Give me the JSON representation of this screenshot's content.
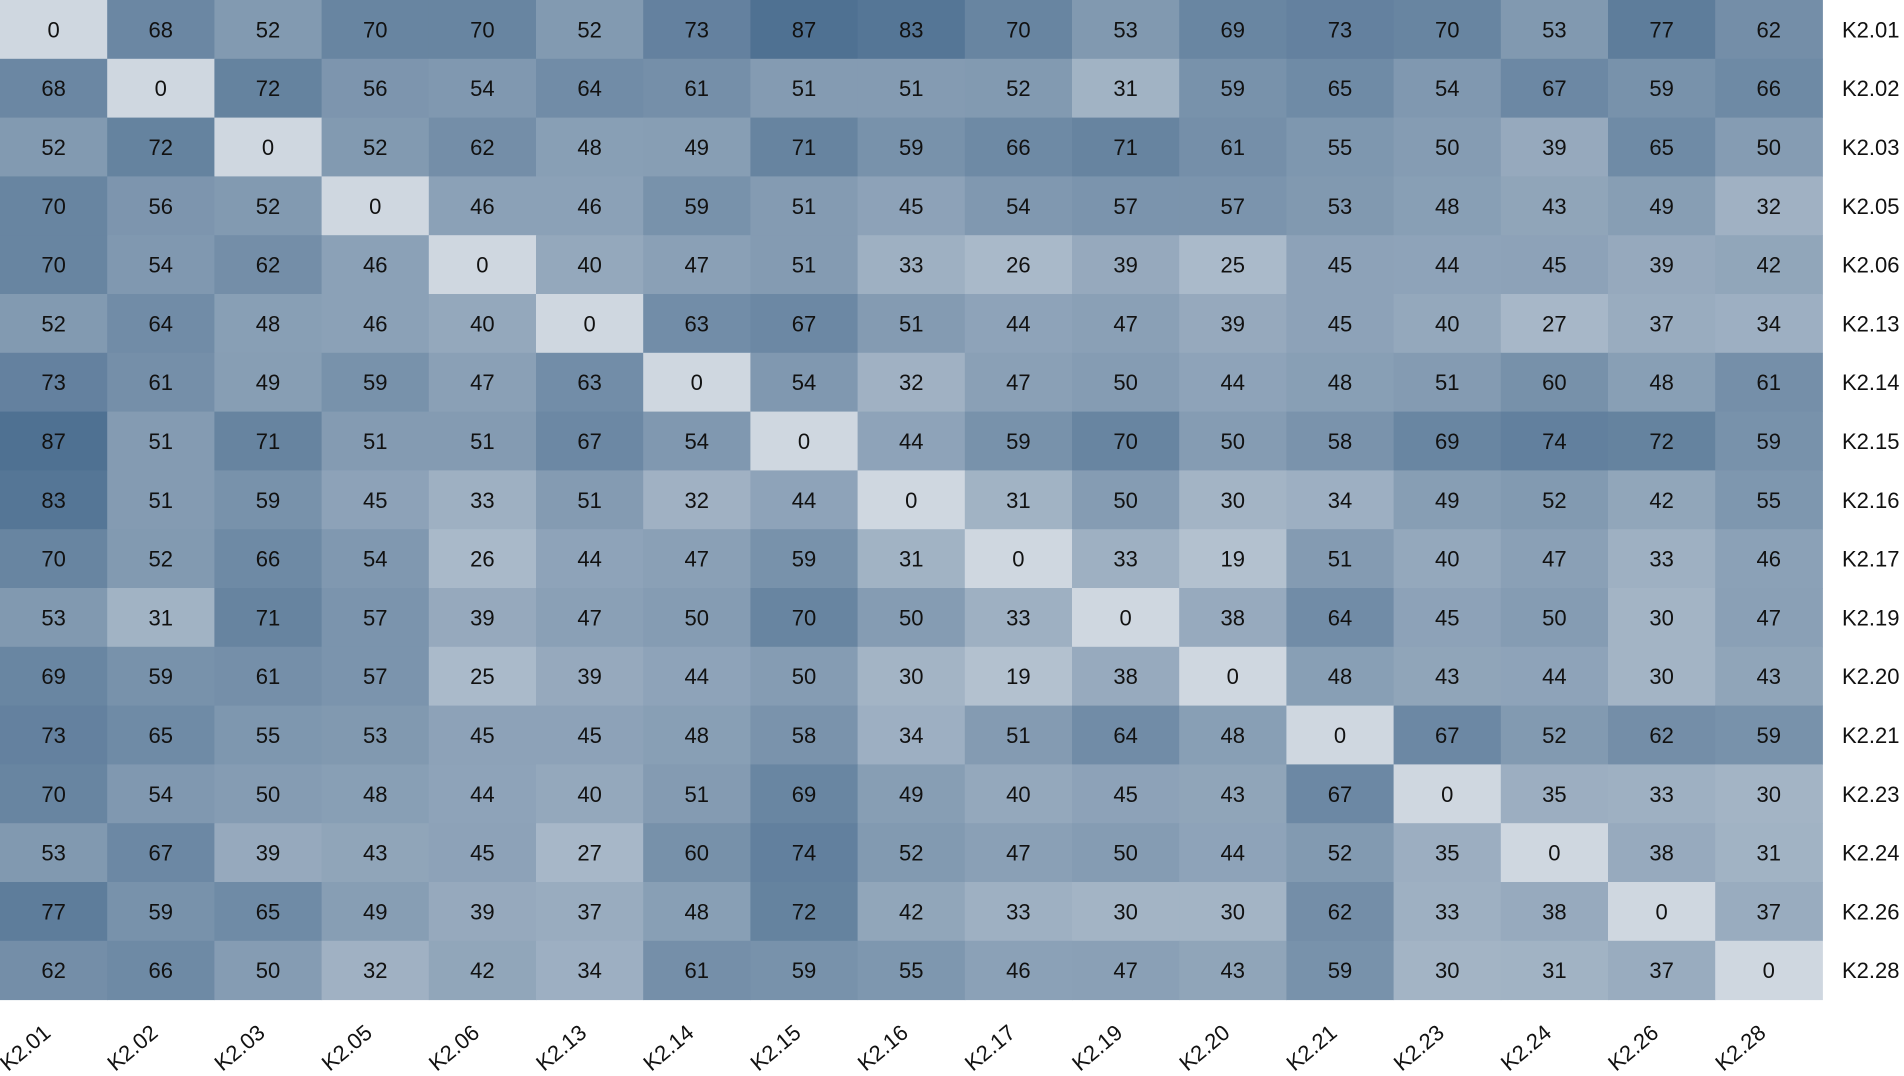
{
  "chart_data": {
    "type": "heatmap",
    "colors": {
      "low": "#cfd7e0",
      "high": "#4f7192",
      "text": "#111111",
      "background": "#ffffff"
    },
    "labels": [
      "K2.01",
      "K2.02",
      "K2.03",
      "K2.05",
      "K2.06",
      "K2.13",
      "K2.14",
      "K2.15",
      "K2.16",
      "K2.17",
      "K2.19",
      "K2.20",
      "K2.21",
      "K2.23",
      "K2.24",
      "K2.26",
      "K2.28"
    ],
    "value_range": [
      0,
      87
    ],
    "values": [
      [
        0,
        68,
        52,
        70,
        70,
        52,
        73,
        87,
        83,
        70,
        53,
        69,
        73,
        70,
        53,
        77,
        62
      ],
      [
        68,
        0,
        72,
        56,
        54,
        64,
        61,
        51,
        51,
        52,
        31,
        59,
        65,
        54,
        67,
        59,
        66
      ],
      [
        52,
        72,
        0,
        52,
        62,
        48,
        49,
        71,
        59,
        66,
        71,
        61,
        55,
        50,
        39,
        65,
        50
      ],
      [
        70,
        56,
        52,
        0,
        46,
        46,
        59,
        51,
        45,
        54,
        57,
        57,
        53,
        48,
        43,
        49,
        32
      ],
      [
        70,
        54,
        62,
        46,
        0,
        40,
        47,
        51,
        33,
        26,
        39,
        25,
        45,
        44,
        45,
        39,
        42
      ],
      [
        52,
        64,
        48,
        46,
        40,
        0,
        63,
        67,
        51,
        44,
        47,
        39,
        45,
        40,
        27,
        37,
        34
      ],
      [
        73,
        61,
        49,
        59,
        47,
        63,
        0,
        54,
        32,
        47,
        50,
        44,
        48,
        51,
        60,
        48,
        61
      ],
      [
        87,
        51,
        71,
        51,
        51,
        67,
        54,
        0,
        44,
        59,
        70,
        50,
        58,
        69,
        74,
        72,
        59
      ],
      [
        83,
        51,
        59,
        45,
        33,
        51,
        32,
        44,
        0,
        31,
        50,
        30,
        34,
        49,
        52,
        42,
        55
      ],
      [
        70,
        52,
        66,
        54,
        26,
        44,
        47,
        59,
        31,
        0,
        33,
        19,
        51,
        40,
        47,
        33,
        46
      ],
      [
        53,
        31,
        71,
        57,
        39,
        47,
        50,
        70,
        50,
        33,
        0,
        38,
        64,
        45,
        50,
        30,
        47
      ],
      [
        69,
        59,
        61,
        57,
        25,
        39,
        44,
        50,
        30,
        19,
        38,
        0,
        48,
        43,
        44,
        30,
        43
      ],
      [
        73,
        65,
        55,
        53,
        45,
        45,
        48,
        58,
        34,
        51,
        64,
        48,
        0,
        67,
        52,
        62,
        59
      ],
      [
        70,
        54,
        50,
        48,
        44,
        40,
        51,
        69,
        49,
        40,
        45,
        43,
        67,
        0,
        35,
        33,
        30
      ],
      [
        53,
        67,
        39,
        43,
        45,
        27,
        60,
        74,
        52,
        47,
        50,
        44,
        52,
        35,
        0,
        38,
        31
      ],
      [
        77,
        59,
        65,
        49,
        39,
        37,
        48,
        72,
        42,
        33,
        30,
        30,
        62,
        33,
        38,
        0,
        37
      ],
      [
        62,
        66,
        50,
        32,
        42,
        34,
        61,
        59,
        55,
        46,
        47,
        43,
        59,
        30,
        31,
        37,
        0
      ]
    ],
    "row_labels_position": "right",
    "column_labels_position": "bottom, rotated",
    "legend": "none"
  }
}
